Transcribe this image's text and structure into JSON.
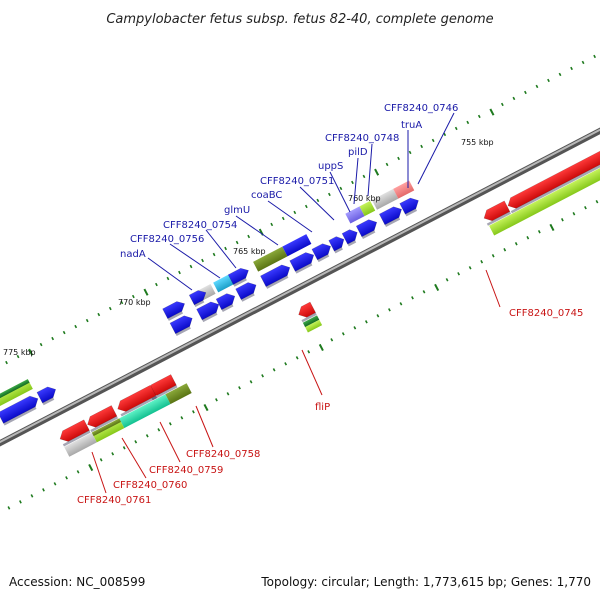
{
  "title": "Campylobacter fetus subsp. fetus 82-40, complete genome",
  "footer": {
    "accession": "Accession: NC_008599",
    "summary": "Topology: circular; Length: 1,773,615 bp; Genes: 1,770"
  },
  "colors": {
    "forward_label": "#1a1aa8",
    "reverse_label": "#c81414",
    "backbone": "#8a8a8a",
    "tick": "#1e7a1e",
    "cds_forward": "#1010e0",
    "cds_reverse": "#ee1111",
    "cog_green": "#99dd22",
    "cog_olive": "#6b8a1e",
    "cog_teal": "#1dd1a1",
    "cog_grey": "#bdbdbd"
  },
  "tick_labels": {
    "t755": "755 kbp",
    "t760": "760 kbp",
    "t765": "765 kbp",
    "t770": "770 kbp",
    "t775": "775 kbp"
  },
  "labels": {
    "forward": {
      "l0746": "CFF8240_0746",
      "truA": "truA",
      "l0748": "CFF8240_0748",
      "pilD": "pilD",
      "uppS": "uppS",
      "l0751": "CFF8240_0751",
      "coaBC": "coaBC",
      "glmU": "glmU",
      "l0754": "CFF8240_0754",
      "l0756": "CFF8240_0756",
      "nadA": "nadA"
    },
    "reverse": {
      "l0745": "CFF8240_0745",
      "fliP": "fliP",
      "l0758": "CFF8240_0758",
      "l0759": "CFF8240_0759",
      "l0760": "CFF8240_0760",
      "l0761": "CFF8240_0761"
    }
  }
}
